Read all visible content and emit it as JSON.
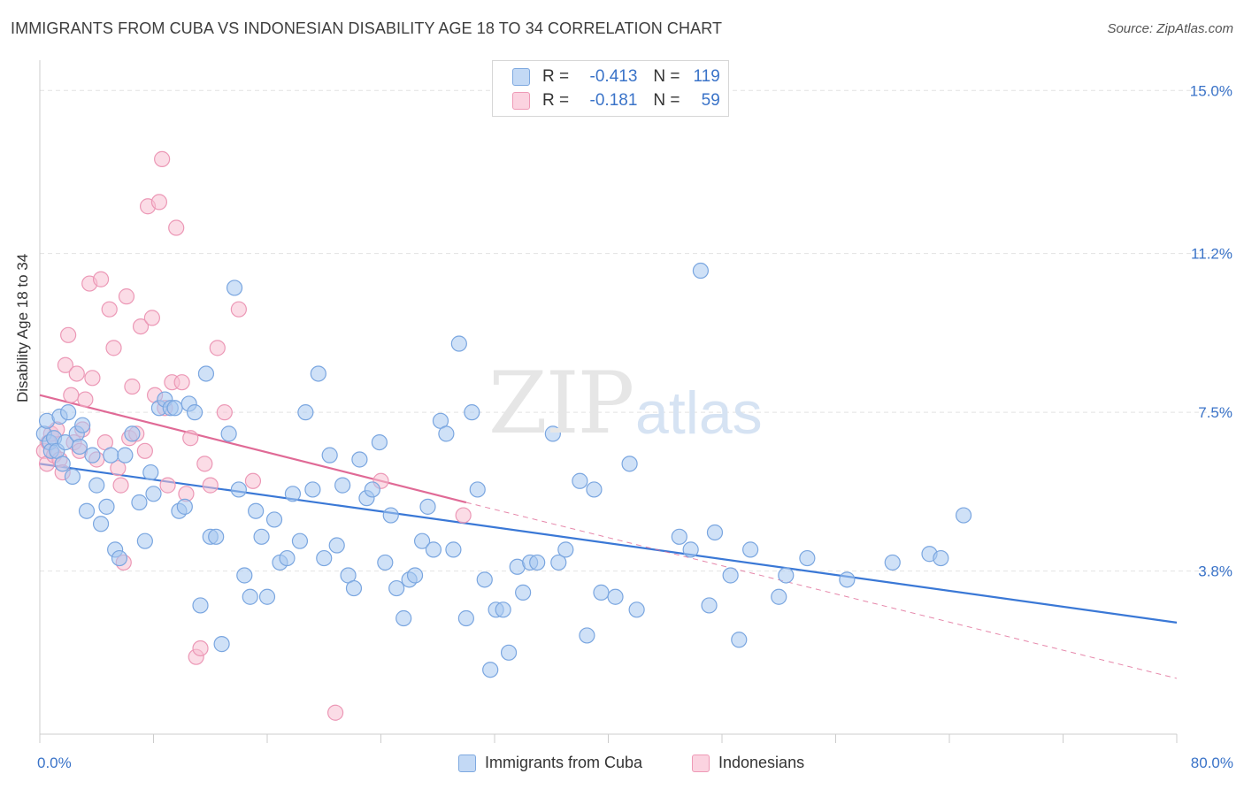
{
  "header": {
    "title": "IMMIGRANTS FROM CUBA VS INDONESIAN DISABILITY AGE 18 TO 34 CORRELATION CHART",
    "source": "Source: ZipAtlas.com"
  },
  "watermark": {
    "zip": "ZIP",
    "atlas": "atlas"
  },
  "legend": {
    "rows": [
      {
        "r_label": "R =",
        "r_value": "-0.413",
        "n_label": "N =",
        "n_value": "119",
        "color": "#9cc0ee"
      },
      {
        "r_label": "R =",
        "r_value": "-0.181",
        "n_label": "N =",
        "n_value": "59",
        "color": "#f5b3c8"
      }
    ]
  },
  "bottom_legend": [
    {
      "label": "Immigrants from Cuba",
      "color": "#9cc0ee"
    },
    {
      "label": "Indonesians",
      "color": "#f5b3c8"
    }
  ],
  "chart_data": {
    "type": "scatter",
    "ylabel": "Disability Age 18 to 34",
    "x_tick_labels": [
      "0.0%",
      "80.0%"
    ],
    "y_tick_labels": [
      "3.8%",
      "7.5%",
      "11.2%",
      "15.0%"
    ],
    "xlim": [
      0,
      80
    ],
    "ylim": [
      0,
      15.5
    ],
    "y_ticks": [
      3.8,
      7.5,
      11.2,
      15.0
    ],
    "grid": true,
    "legend_position": "top-center",
    "series": [
      {
        "name": "Immigrants from Cuba",
        "color": "#3a78d6",
        "fill": "#a8c8f0",
        "trend": {
          "x0": 0,
          "y0": 6.3,
          "x1": 80,
          "y1": 2.6,
          "style": "solid"
        },
        "points": [
          [
            0.3,
            7.0
          ],
          [
            0.5,
            7.3
          ],
          [
            0.7,
            6.8
          ],
          [
            0.8,
            6.6
          ],
          [
            1.0,
            6.9
          ],
          [
            1.2,
            6.6
          ],
          [
            1.4,
            7.4
          ],
          [
            1.6,
            6.3
          ],
          [
            1.8,
            6.8
          ],
          [
            2.0,
            7.5
          ],
          [
            2.3,
            6.0
          ],
          [
            2.6,
            7.0
          ],
          [
            2.8,
            6.7
          ],
          [
            3.0,
            7.2
          ],
          [
            3.3,
            5.2
          ],
          [
            3.7,
            6.5
          ],
          [
            4.0,
            5.8
          ],
          [
            4.3,
            4.9
          ],
          [
            4.7,
            5.3
          ],
          [
            5.0,
            6.5
          ],
          [
            5.3,
            4.3
          ],
          [
            5.6,
            4.1
          ],
          [
            6.0,
            6.5
          ],
          [
            6.5,
            7.0
          ],
          [
            7.0,
            5.4
          ],
          [
            7.4,
            4.5
          ],
          [
            7.8,
            6.1
          ],
          [
            8.0,
            5.6
          ],
          [
            8.4,
            7.6
          ],
          [
            8.8,
            7.8
          ],
          [
            9.2,
            7.6
          ],
          [
            9.5,
            7.6
          ],
          [
            9.8,
            5.2
          ],
          [
            10.2,
            5.3
          ],
          [
            10.5,
            7.7
          ],
          [
            10.9,
            7.5
          ],
          [
            11.3,
            3.0
          ],
          [
            11.7,
            8.4
          ],
          [
            12.0,
            4.6
          ],
          [
            12.4,
            4.6
          ],
          [
            12.8,
            2.1
          ],
          [
            13.3,
            7.0
          ],
          [
            13.7,
            10.4
          ],
          [
            14.0,
            5.7
          ],
          [
            14.4,
            3.7
          ],
          [
            14.8,
            3.2
          ],
          [
            15.2,
            5.2
          ],
          [
            15.6,
            4.6
          ],
          [
            16.0,
            3.2
          ],
          [
            16.5,
            5.0
          ],
          [
            16.9,
            4.0
          ],
          [
            17.4,
            4.1
          ],
          [
            17.8,
            5.6
          ],
          [
            18.3,
            4.5
          ],
          [
            18.7,
            7.5
          ],
          [
            19.2,
            5.7
          ],
          [
            19.6,
            8.4
          ],
          [
            20.0,
            4.1
          ],
          [
            20.4,
            6.5
          ],
          [
            20.9,
            4.4
          ],
          [
            21.3,
            5.8
          ],
          [
            21.7,
            3.7
          ],
          [
            22.1,
            3.4
          ],
          [
            22.5,
            6.4
          ],
          [
            23.0,
            5.5
          ],
          [
            23.4,
            5.7
          ],
          [
            23.9,
            6.8
          ],
          [
            24.3,
            4.0
          ],
          [
            24.7,
            5.1
          ],
          [
            25.1,
            3.4
          ],
          [
            25.6,
            2.7
          ],
          [
            26.0,
            3.6
          ],
          [
            26.4,
            3.7
          ],
          [
            26.9,
            4.5
          ],
          [
            27.3,
            5.3
          ],
          [
            27.7,
            4.3
          ],
          [
            28.2,
            7.3
          ],
          [
            28.6,
            7.0
          ],
          [
            29.1,
            4.3
          ],
          [
            29.5,
            9.1
          ],
          [
            30.0,
            2.7
          ],
          [
            30.4,
            7.5
          ],
          [
            30.8,
            5.7
          ],
          [
            31.3,
            3.6
          ],
          [
            31.7,
            1.5
          ],
          [
            32.1,
            2.9
          ],
          [
            32.6,
            2.9
          ],
          [
            33.0,
            1.9
          ],
          [
            33.6,
            3.9
          ],
          [
            34.0,
            3.3
          ],
          [
            34.5,
            4.0
          ],
          [
            35.0,
            4.0
          ],
          [
            36.1,
            7.0
          ],
          [
            36.5,
            4.0
          ],
          [
            37.0,
            4.3
          ],
          [
            38.0,
            5.9
          ],
          [
            38.5,
            2.3
          ],
          [
            39.0,
            5.7
          ],
          [
            39.5,
            3.3
          ],
          [
            40.5,
            3.2
          ],
          [
            41.5,
            6.3
          ],
          [
            42.0,
            2.9
          ],
          [
            45.0,
            4.6
          ],
          [
            45.8,
            4.3
          ],
          [
            46.5,
            10.8
          ],
          [
            47.1,
            3.0
          ],
          [
            47.5,
            4.7
          ],
          [
            48.6,
            3.7
          ],
          [
            49.2,
            2.2
          ],
          [
            50.0,
            4.3
          ],
          [
            52.0,
            3.2
          ],
          [
            52.5,
            3.7
          ],
          [
            54.0,
            4.1
          ],
          [
            56.8,
            3.6
          ],
          [
            60.0,
            4.0
          ],
          [
            62.6,
            4.2
          ],
          [
            63.4,
            4.1
          ],
          [
            65.0,
            5.1
          ]
        ]
      },
      {
        "name": "Indonesians",
        "color": "#e06a96",
        "fill": "#f7bfd1",
        "trend": {
          "x0": 0,
          "y0": 7.9,
          "x1": 30,
          "y1": 5.4,
          "x2": 80,
          "y2": 1.3,
          "style": "solid-then-dashed"
        },
        "points": [
          [
            0.3,
            6.6
          ],
          [
            0.5,
            6.3
          ],
          [
            0.6,
            6.8
          ],
          [
            0.8,
            7.0
          ],
          [
            1.0,
            6.5
          ],
          [
            1.2,
            7.1
          ],
          [
            1.4,
            6.4
          ],
          [
            1.6,
            6.1
          ],
          [
            1.8,
            8.6
          ],
          [
            2.0,
            9.3
          ],
          [
            2.2,
            7.9
          ],
          [
            2.4,
            6.8
          ],
          [
            2.6,
            8.4
          ],
          [
            2.8,
            6.6
          ],
          [
            3.0,
            7.1
          ],
          [
            3.2,
            7.8
          ],
          [
            3.5,
            10.5
          ],
          [
            3.7,
            8.3
          ],
          [
            4.0,
            6.4
          ],
          [
            4.3,
            10.6
          ],
          [
            4.6,
            6.8
          ],
          [
            4.9,
            9.9
          ],
          [
            5.2,
            9.0
          ],
          [
            5.5,
            6.2
          ],
          [
            5.7,
            5.8
          ],
          [
            5.9,
            4.0
          ],
          [
            6.1,
            10.2
          ],
          [
            6.3,
            6.9
          ],
          [
            6.5,
            8.1
          ],
          [
            6.8,
            7.0
          ],
          [
            7.1,
            9.5
          ],
          [
            7.4,
            6.6
          ],
          [
            7.6,
            12.3
          ],
          [
            7.9,
            9.7
          ],
          [
            8.1,
            7.9
          ],
          [
            8.4,
            12.4
          ],
          [
            8.6,
            13.4
          ],
          [
            8.8,
            7.6
          ],
          [
            9.0,
            5.8
          ],
          [
            9.3,
            8.2
          ],
          [
            9.6,
            11.8
          ],
          [
            10.0,
            8.2
          ],
          [
            10.3,
            5.6
          ],
          [
            10.6,
            6.9
          ],
          [
            11.0,
            1.8
          ],
          [
            11.3,
            2.0
          ],
          [
            11.6,
            6.3
          ],
          [
            12.0,
            5.8
          ],
          [
            12.5,
            9.0
          ],
          [
            13.0,
            7.5
          ],
          [
            14.0,
            9.9
          ],
          [
            15.0,
            5.9
          ],
          [
            20.8,
            0.5
          ],
          [
            24.0,
            5.9
          ],
          [
            29.8,
            5.1
          ]
        ]
      }
    ]
  }
}
